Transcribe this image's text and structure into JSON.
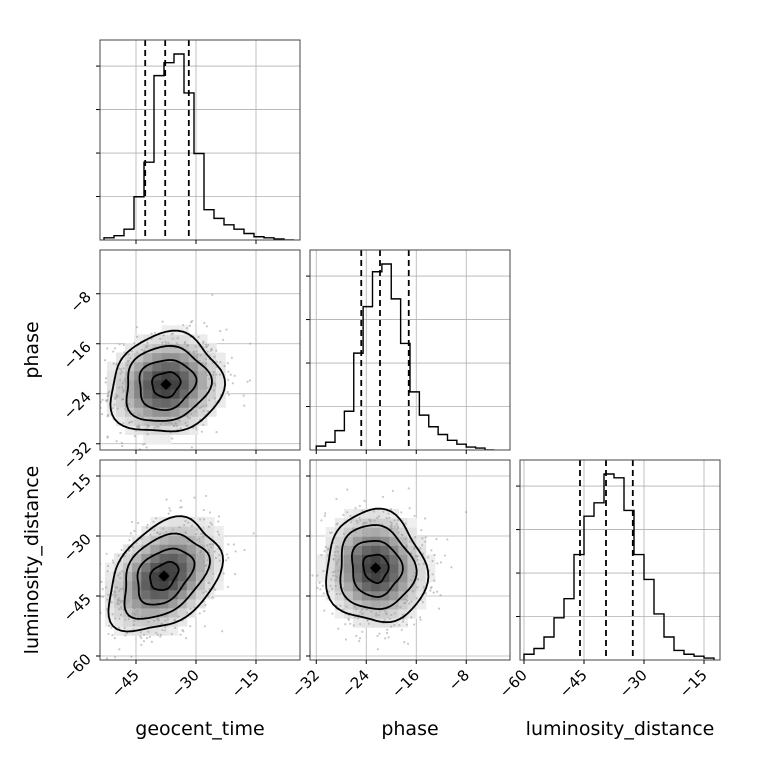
{
  "chart_data": {
    "type": "corner",
    "parameters": [
      "geocent_time",
      "phase",
      "luminosity_distance"
    ],
    "ranges": {
      "geocent_time": [
        -54,
        -4
      ],
      "phase": [
        -33,
        -1
      ],
      "luminosity_distance": [
        -61,
        -11
      ]
    },
    "ticks": {
      "geocent_time": [
        -45,
        -30,
        -15
      ],
      "phase": [
        -32,
        -24,
        -16,
        -8
      ],
      "luminosity_distance": [
        -60,
        -45,
        -30,
        -15
      ]
    },
    "tick_labels": {
      "geocent_time": [
        "−45",
        "−30",
        "−15"
      ],
      "phase": [
        "−32",
        "−24",
        "−16",
        "−8"
      ],
      "luminosity_distance": [
        "−60",
        "−45",
        "−30",
        "−15"
      ]
    },
    "quantiles": {
      "geocent_time": [
        -42.7,
        -37.7,
        -31.8
      ],
      "phase": [
        -24.8,
        -21.8,
        -17.2
      ],
      "luminosity_distance": [
        -46.0,
        -39.5,
        -32.8
      ]
    },
    "histograms": {
      "geocent_time": {
        "edges": [
          -53,
          -50.5,
          -48,
          -45.5,
          -43,
          -40.5,
          -38,
          -35.5,
          -33,
          -30.5,
          -28,
          -25.5,
          -23,
          -20.5,
          -18,
          -15.5,
          -13,
          -10.5,
          -8,
          -5.5
        ],
        "counts": [
          0.01,
          0.02,
          0.05,
          0.2,
          0.36,
          0.76,
          0.82,
          0.86,
          0.68,
          0.4,
          0.14,
          0.1,
          0.07,
          0.05,
          0.03,
          0.015,
          0.01,
          0.005,
          0.0
        ]
      },
      "phase": {
        "edges": [
          -32,
          -30.5,
          -29,
          -27.5,
          -26,
          -24.5,
          -23,
          -21.5,
          -20,
          -18.5,
          -17,
          -15.5,
          -14,
          -12.5,
          -11,
          -9.5,
          -8,
          -6.5,
          -5,
          -3.5
        ],
        "counts": [
          0.02,
          0.04,
          0.1,
          0.2,
          0.5,
          0.74,
          0.92,
          0.96,
          0.78,
          0.55,
          0.3,
          0.18,
          0.12,
          0.08,
          0.05,
          0.03,
          0.015,
          0.01,
          0.0
        ]
      },
      "luminosity_distance": {
        "edges": [
          -60,
          -57.5,
          -55,
          -52.5,
          -50,
          -47.5,
          -45,
          -42.5,
          -40,
          -37.5,
          -35,
          -32.5,
          -30,
          -27.5,
          -25,
          -22.5,
          -20,
          -17.5,
          -15,
          -12.5
        ],
        "counts": [
          0.03,
          0.06,
          0.12,
          0.22,
          0.32,
          0.55,
          0.75,
          0.82,
          0.97,
          0.95,
          0.78,
          0.55,
          0.42,
          0.24,
          0.12,
          0.05,
          0.03,
          0.02,
          0.01
        ]
      }
    },
    "joint": [
      {
        "x": "geocent_time",
        "y": "phase",
        "center": [
          -37.5,
          -22.5
        ],
        "sd": [
          7.0,
          4.0
        ],
        "rho": 0.1
      },
      {
        "x": "geocent_time",
        "y": "luminosity_distance",
        "center": [
          -38.0,
          -40.0
        ],
        "sd": [
          7.0,
          7.0
        ],
        "rho": 0.35
      },
      {
        "x": "phase",
        "y": "luminosity_distance",
        "center": [
          -22.5,
          -38.0
        ],
        "sd": [
          4.0,
          7.0
        ],
        "rho": -0.05
      }
    ],
    "contour_levels_sigma": [
      0.5,
      1.0,
      1.5,
      2.0
    ],
    "scatter_points_per_panel": 900,
    "grid": true,
    "xlabel": [
      "geocent_time",
      "phase",
      "luminosity_distance"
    ],
    "ylabel": [
      "",
      "phase",
      "luminosity_distance"
    ]
  }
}
